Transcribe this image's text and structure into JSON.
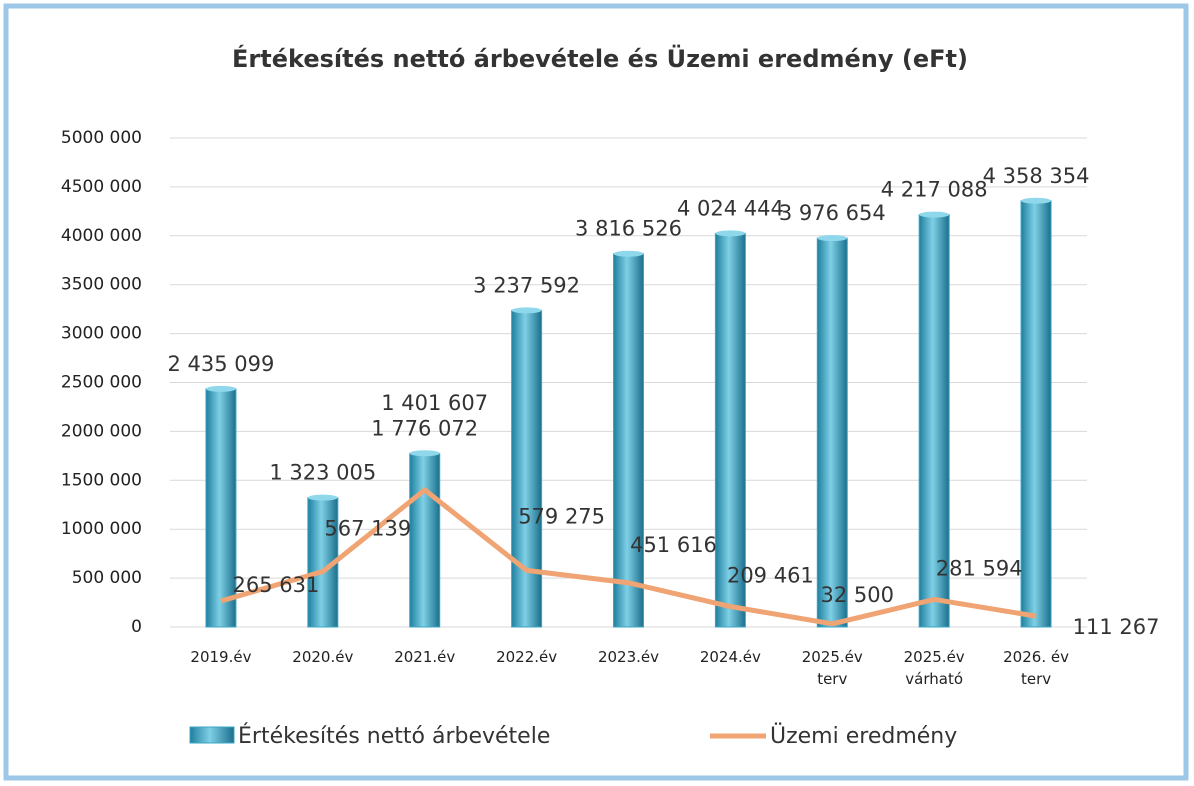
{
  "chart_data": {
    "type": "bar",
    "title": "Értékesítés nettó árbevétele és Üzemi eredmény (eFt)",
    "categories": [
      "2019.év",
      "2020.év",
      "2021.év",
      "2022.év",
      "2023.év",
      "2024.év",
      "2025.év\nterv",
      "2025.év\nvárható",
      "2026. év\nterv"
    ],
    "series": [
      {
        "name": "Értékesítés nettó árbevétele",
        "type": "bar",
        "color": "#3aa6c6",
        "values": [
          2435099,
          1323005,
          1776072,
          3237592,
          3816526,
          4024444,
          3976654,
          4217088,
          4358354
        ],
        "value_labels": [
          "2 435 099",
          "1 323 005",
          "1 776 072",
          "3 237 592",
          "3 816 526",
          "4 024 444",
          "3 976 654",
          "4 217 088",
          "4 358 354"
        ]
      },
      {
        "name": "Üzemi eredmény",
        "type": "line",
        "color": "#f0a373",
        "values": [
          265631,
          567139,
          1401607,
          579275,
          451616,
          209461,
          32500,
          281594,
          111267
        ],
        "value_labels": [
          "265 631",
          "567 139",
          "1 401 607",
          "579 275",
          "451 616",
          "209 461",
          "32 500",
          "281 594",
          "111 267"
        ]
      }
    ],
    "ylim": [
      0,
      5000000
    ],
    "yticks": [
      0,
      {
        "value": 500000,
        "label": "500 000"
      },
      {
        "value": 1000000,
        "label": "1000 000"
      },
      {
        "value": 1500000,
        "label": "1500 000"
      },
      {
        "value": 2000000,
        "label": "2000 000"
      },
      {
        "value": 2500000,
        "label": "2500 000"
      },
      {
        "value": 3000000,
        "label": "3000 000"
      },
      {
        "value": 3500000,
        "label": "3500 000"
      },
      {
        "value": 4000000,
        "label": "4000 000"
      },
      {
        "value": 4500000,
        "label": "4500 000"
      },
      {
        "value": 5000000,
        "label": "5000 000"
      }
    ],
    "grid": true,
    "legend": "bottom"
  }
}
